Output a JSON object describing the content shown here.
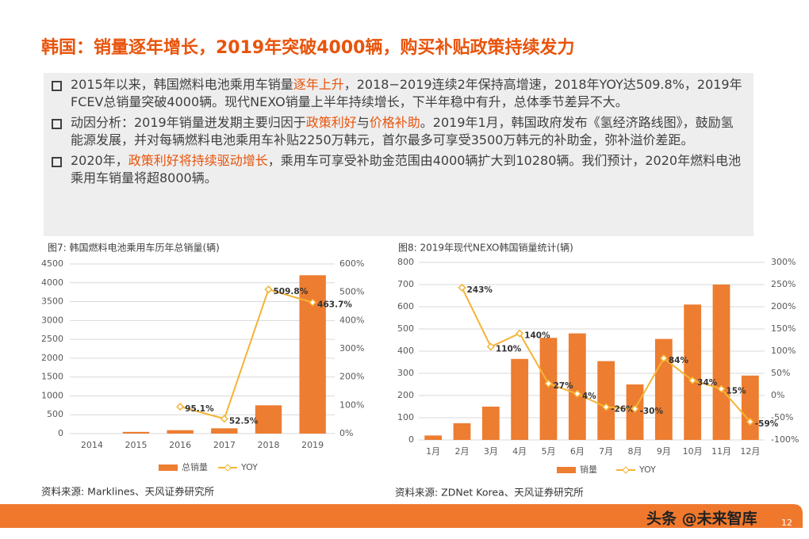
{
  "header": {
    "title": "韩国：销量逐年增长，2019年突破4000辆，购买补贴政策持续发力"
  },
  "bullets": [
    [
      "2015年以来，韩国燃料电池乘用车销量",
      {
        "text": "逐年上升",
        "color": "#e8540c"
      },
      "，2018−2019连续2年保持高增速，2018年YOY达509.8%，2019年FCEV总销量突破4000辆。现代NEXO销量上半年持续增长，下半年稳中有升，总体季节差异不大。"
    ],
    [
      "动因分析：2019年销量迸发期主要归因于",
      {
        "text": "政策利好",
        "color": "#e8540c"
      },
      "与",
      {
        "text": "价格补助",
        "color": "#e8540c"
      },
      "。2019年1月，韩国政府发布《氢经济路线图》，鼓励氢能源发展，并对每辆燃料电池乘用车补贴2250万韩元，首尔最多可享受3500万韩元的补助金，弥补溢价差距。"
    ],
    [
      "2020年，",
      {
        "text": "政策利好将持续驱动增长",
        "color": "#e8540c"
      },
      "，乘用车可享受补助金范围由4000辆扩大到10280辆。我们预计，2020年燃料电池乘用车销量将超8000辆。"
    ]
  ],
  "chart_data": [
    {
      "type": "bar",
      "title": "图7: 韩国燃料电池乘用车历年总销量(辆)",
      "categories": [
        "2014",
        "2015",
        "2016",
        "2017",
        "2018",
        "2019"
      ],
      "series": [
        {
          "name": "总销量",
          "color": "#ed7d31",
          "values": [
            0,
            45,
            90,
            140,
            750,
            4200
          ]
        },
        {
          "name": "YOY",
          "type": "line",
          "axis": "y2",
          "color": "#f5b335",
          "values": [
            null,
            null,
            95.1,
            52.5,
            509.8,
            463.7
          ],
          "value_labels": [
            null,
            null,
            "95.1%",
            "52.5%",
            "509.8%",
            "463.7%"
          ]
        }
      ],
      "ylim": [
        0,
        4500
      ],
      "yticks": [
        0,
        500,
        1000,
        1500,
        2000,
        2500,
        3000,
        3500,
        4000,
        4500
      ],
      "y2lim": [
        0,
        600
      ],
      "y2ticks": [
        {
          "value": 0,
          "label": "0%"
        },
        {
          "value": 100,
          "label": "100%"
        },
        {
          "value": 200,
          "label": "200%"
        },
        {
          "value": 300,
          "label": "300%"
        },
        {
          "value": 400,
          "label": "400%"
        },
        {
          "value": 500,
          "label": "500%"
        },
        {
          "value": 600,
          "label": "600%"
        }
      ],
      "grid": true,
      "source": "资料来源: Marklines、天风证券研究所"
    },
    {
      "type": "bar",
      "title": "图8: 2019年现代NEXO韩国销量统计(辆)",
      "categories": [
        "1月",
        "2月",
        "3月",
        "4月",
        "5月",
        "6月",
        "7月",
        "8月",
        "9月",
        "10月",
        "11月",
        "12月"
      ],
      "series": [
        {
          "name": "销量",
          "color": "#ed7d31",
          "values": [
            20,
            75,
            150,
            365,
            460,
            480,
            355,
            250,
            455,
            610,
            700,
            290
          ]
        },
        {
          "name": "YOY",
          "type": "line",
          "axis": "y2",
          "color": "#f5b335",
          "values": [
            null,
            243,
            110,
            140,
            27,
            4,
            -26,
            -30,
            84,
            34,
            15,
            -59
          ],
          "value_labels": [
            null,
            "243%",
            "110%",
            "140%",
            "27%",
            "4%",
            "-26%",
            "-30%",
            "84%",
            "34%",
            "15%",
            "-59%"
          ]
        }
      ],
      "ylim": [
        0,
        800
      ],
      "yticks": [
        0,
        100,
        200,
        300,
        400,
        500,
        600,
        700,
        800
      ],
      "y2lim": [
        -100,
        300
      ],
      "y2ticks": [
        {
          "value": -100,
          "label": "-100%"
        },
        {
          "value": -50,
          "label": "-50%"
        },
        {
          "value": 0,
          "label": "0%"
        },
        {
          "value": 50,
          "label": "50%"
        },
        {
          "value": 100,
          "label": "100%"
        },
        {
          "value": 150,
          "label": "150%"
        },
        {
          "value": 200,
          "label": "200%"
        },
        {
          "value": 250,
          "label": "250%"
        },
        {
          "value": 300,
          "label": "300%"
        }
      ],
      "grid": true,
      "source": "资料来源: ZDNet Korea、天风证券研究所"
    }
  ],
  "footer": {
    "brand": "头条 @未来智库",
    "page": "12"
  }
}
